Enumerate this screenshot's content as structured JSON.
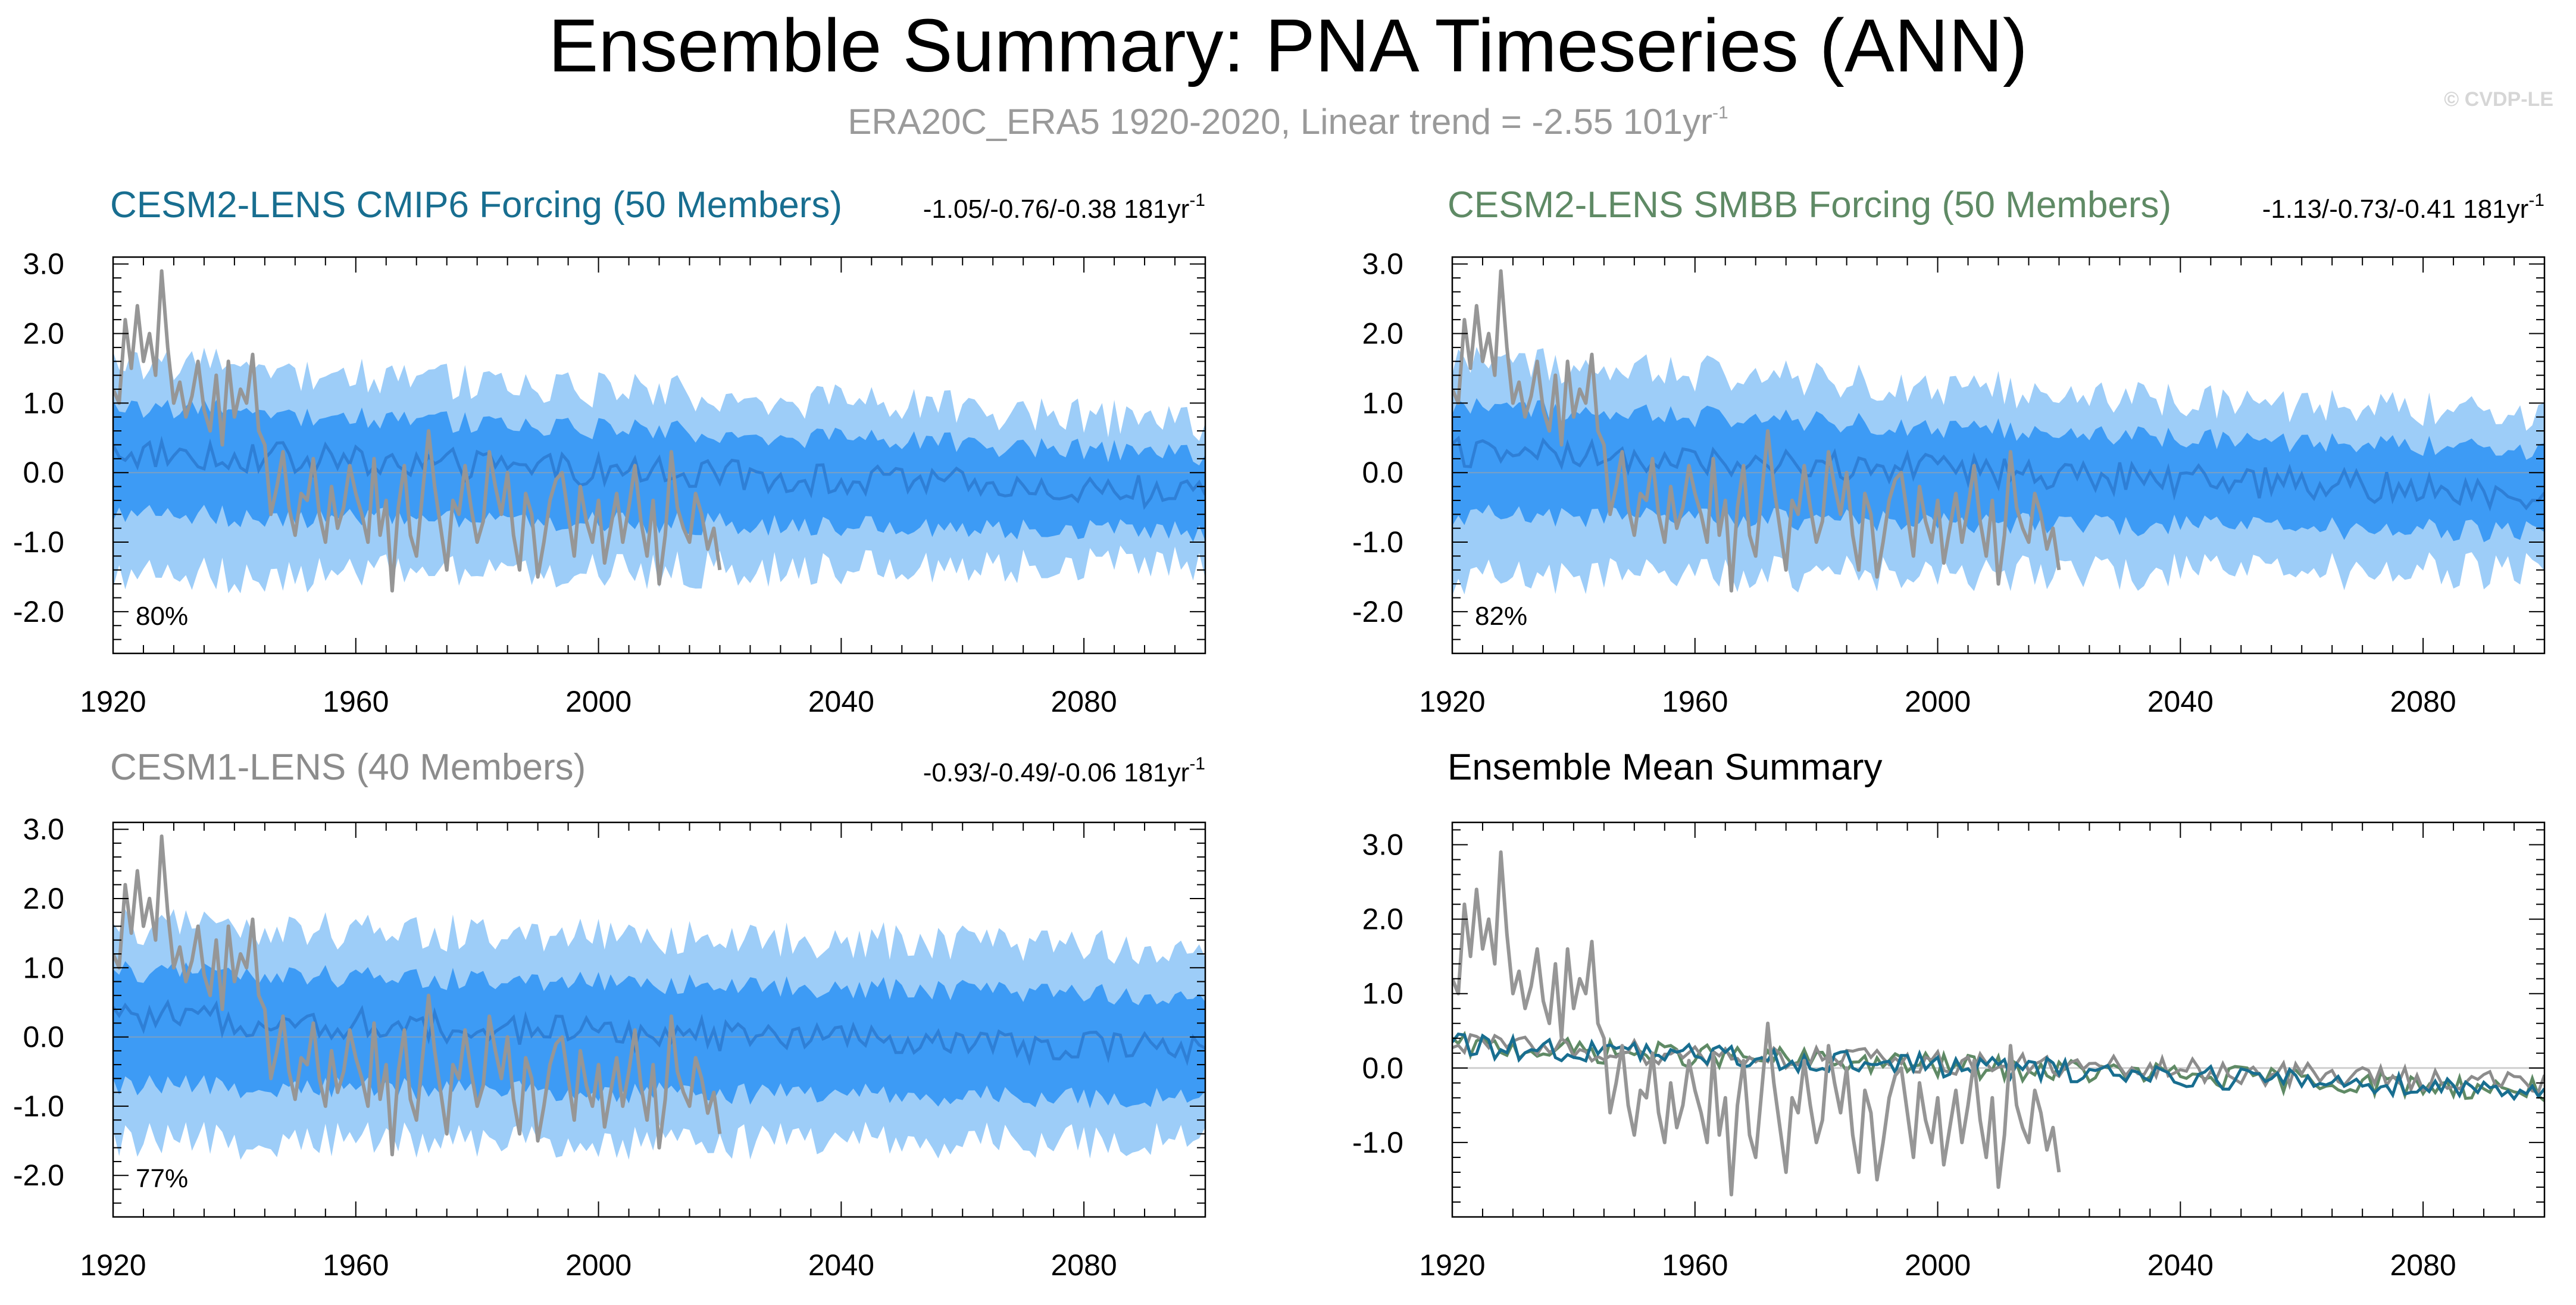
{
  "figure": {
    "title": "Ensemble Summary: PNA Timeseries (ANN)",
    "subtitle_main": "ERA20C_ERA5 1920-2020, Linear trend = -2.55 101yr",
    "subtitle_sup": "-1",
    "copyright": "© CVDP-LE"
  },
  "colors": {
    "band_outer": "#9dcdf8",
    "band_inner": "#3d9bf5",
    "ens_mean_line": "#2e7fd6",
    "obs": "#969696",
    "cesm2_cmip6": "#186e90",
    "cesm2_smbb": "#5f8a65",
    "cesm1": "#8c8c8c",
    "black": "#000000"
  },
  "panels": [
    {
      "id": "cesm2-cmip6",
      "title": "CESM2-LENS CMIP6 Forcing (50 Members)",
      "title_color": "#186e90",
      "trend_text": "-1.05/-0.76/-0.38 181yr",
      "trend_sup": "-1",
      "percent": "80%"
    },
    {
      "id": "cesm2-smbb",
      "title": "CESM2-LENS SMBB Forcing (50 Members)",
      "title_color": "#5f8a65",
      "trend_text": "-1.13/-0.73/-0.41 181yr",
      "trend_sup": "-1",
      "percent": "82%"
    },
    {
      "id": "cesm1",
      "title": "CESM1-LENS (40 Members)",
      "title_color": "#8c8c8c",
      "trend_text": "-0.93/-0.49/-0.06 181yr",
      "trend_sup": "-1",
      "percent": "77%"
    },
    {
      "id": "ens-mean",
      "title": "Ensemble Mean Summary",
      "title_color": "#000000",
      "trend_text": "",
      "trend_sup": "",
      "percent": ""
    }
  ],
  "chart_data": [
    {
      "type": "area",
      "panel": "cesm2-cmip6",
      "xlim": [
        1920,
        2100
      ],
      "ylim": [
        -2.6,
        3.1
      ],
      "x_ticks": [
        "1920",
        "1960",
        "2000",
        "2040",
        "2080"
      ],
      "y_ticks": [
        "3.0",
        "2.0",
        "1.0",
        "0.0",
        "-1.0",
        "-2.0"
      ],
      "shading": {
        "outer_start": [
          -1.5,
          1.6
        ],
        "outer_end": [
          -1.3,
          0.7
        ],
        "inner_start": [
          -0.6,
          0.95
        ],
        "inner_end": [
          -0.85,
          0.25
        ],
        "mean_start": 0.3,
        "mean_end": -0.3
      },
      "observations_x": [
        1920,
        2020
      ],
      "observations": [
        1.2,
        1.0,
        2.2,
        1.5,
        2.4,
        1.6,
        2.0,
        1.4,
        2.9,
        1.8,
        1.0,
        1.3,
        0.8,
        1.1,
        1.6,
        0.9,
        0.6,
        1.4,
        0.4,
        1.6,
        0.8,
        1.2,
        1.0,
        1.7,
        0.6,
        0.4,
        -0.6,
        -0.2,
        0.3,
        -0.5,
        -0.9,
        -0.3,
        -0.4,
        0.2,
        -0.6,
        -1.0,
        -0.2,
        -0.8,
        -0.5,
        0.1,
        -0.3,
        -0.6,
        -1.0,
        0.2,
        -0.9,
        -0.4,
        -1.7,
        -0.5,
        0.1,
        -0.9,
        -1.2,
        -0.3,
        0.6,
        -0.2,
        -0.8,
        -1.4,
        -0.4,
        -0.6,
        0.1,
        -0.5,
        -1.0,
        -0.7,
        0.3,
        -0.2,
        -0.6,
        0.0,
        -0.9,
        -1.4,
        -0.3,
        -0.6,
        -1.5,
        -1.0,
        -0.4,
        -0.1,
        0.0,
        -0.6,
        -1.2,
        -0.2,
        -0.7,
        -1.0,
        -0.4,
        -1.3,
        -0.8,
        -0.3,
        -1.0,
        -0.5,
        0.1,
        -0.7,
        -1.2,
        -0.4,
        -1.6,
        -0.9,
        0.3,
        -0.5,
        -0.8,
        -1.0,
        -0.3,
        -0.6,
        -1.1,
        -0.8,
        -1.4
      ]
    },
    {
      "type": "area",
      "panel": "cesm2-smbb",
      "xlim": [
        1920,
        2100
      ],
      "ylim": [
        -2.6,
        3.1
      ],
      "x_ticks": [
        "1920",
        "1960",
        "2000",
        "2040",
        "2080"
      ],
      "y_ticks": [
        "3.0",
        "2.0",
        "1.0",
        "0.0",
        "-1.0",
        "-2.0"
      ],
      "shading": {
        "outer_start": [
          -1.5,
          1.6
        ],
        "outer_end": [
          -1.4,
          0.8
        ],
        "inner_start": [
          -0.6,
          0.95
        ],
        "inner_end": [
          -0.85,
          0.3
        ],
        "mean_start": 0.3,
        "mean_end": -0.3
      },
      "observations_x": [
        1920,
        2020
      ],
      "observations": [
        1.2,
        1.0,
        2.2,
        1.5,
        2.4,
        1.6,
        2.0,
        1.4,
        2.9,
        1.8,
        1.0,
        1.3,
        0.8,
        1.1,
        1.6,
        0.9,
        0.6,
        1.4,
        0.4,
        1.6,
        0.8,
        1.2,
        1.0,
        1.7,
        0.6,
        0.4,
        -0.6,
        -0.2,
        0.3,
        -0.5,
        -0.9,
        -0.3,
        -0.4,
        0.2,
        -0.6,
        -1.0,
        -0.2,
        -0.8,
        -0.5,
        0.1,
        -0.3,
        -0.6,
        -1.0,
        0.2,
        -0.9,
        -0.4,
        -1.7,
        -0.5,
        0.1,
        -0.9,
        -1.2,
        -0.3,
        0.6,
        -0.2,
        -0.8,
        -1.4,
        -0.4,
        -0.6,
        0.1,
        -0.5,
        -1.0,
        -0.7,
        0.3,
        -0.2,
        -0.6,
        0.0,
        -0.9,
        -1.4,
        -0.3,
        -0.6,
        -1.5,
        -1.0,
        -0.4,
        -0.1,
        0.0,
        -0.6,
        -1.2,
        -0.2,
        -0.7,
        -1.0,
        -0.4,
        -1.3,
        -0.8,
        -0.3,
        -1.0,
        -0.5,
        0.1,
        -0.7,
        -1.2,
        -0.4,
        -1.6,
        -0.9,
        0.3,
        -0.5,
        -0.8,
        -1.0,
        -0.3,
        -0.6,
        -1.1,
        -0.8,
        -1.4
      ]
    },
    {
      "type": "area",
      "panel": "cesm1",
      "xlim": [
        1920,
        2100
      ],
      "ylim": [
        -2.6,
        3.1
      ],
      "x_ticks": [
        "1920",
        "1960",
        "2000",
        "2040",
        "2080"
      ],
      "y_ticks": [
        "3.0",
        "2.0",
        "1.0",
        "0.0",
        "-1.0",
        "-2.0"
      ],
      "shading": {
        "outer_start": [
          -1.5,
          1.6
        ],
        "outer_end": [
          -1.5,
          1.3
        ],
        "inner_start": [
          -0.7,
          0.95
        ],
        "inner_end": [
          -0.9,
          0.6
        ],
        "mean_start": 0.3,
        "mean_end": -0.2
      },
      "observations_x": [
        1920,
        2020
      ],
      "observations": [
        1.2,
        1.0,
        2.2,
        1.5,
        2.4,
        1.6,
        2.0,
        1.4,
        2.9,
        1.8,
        1.0,
        1.3,
        0.8,
        1.1,
        1.6,
        0.9,
        0.6,
        1.4,
        0.4,
        1.6,
        0.8,
        1.2,
        1.0,
        1.7,
        0.6,
        0.4,
        -0.6,
        -0.2,
        0.3,
        -0.5,
        -0.9,
        -0.3,
        -0.4,
        0.2,
        -0.6,
        -1.0,
        -0.2,
        -0.8,
        -0.5,
        0.1,
        -0.3,
        -0.6,
        -1.0,
        0.2,
        -0.9,
        -0.4,
        -1.7,
        -0.5,
        0.1,
        -0.9,
        -1.2,
        -0.3,
        0.6,
        -0.2,
        -0.8,
        -1.4,
        -0.4,
        -0.6,
        0.1,
        -0.5,
        -1.0,
        -0.7,
        0.3,
        -0.2,
        -0.6,
        0.0,
        -0.9,
        -1.4,
        -0.3,
        -0.6,
        -1.5,
        -1.0,
        -0.4,
        -0.1,
        0.0,
        -0.6,
        -1.2,
        -0.2,
        -0.7,
        -1.0,
        -0.4,
        -1.3,
        -0.8,
        -0.3,
        -1.0,
        -0.5,
        0.1,
        -0.7,
        -1.2,
        -0.4,
        -1.6,
        -0.9,
        0.3,
        -0.5,
        -0.8,
        -1.0,
        -0.3,
        -0.6,
        -1.1,
        -0.8,
        -1.4
      ]
    },
    {
      "type": "line",
      "panel": "ens-mean",
      "xlim": [
        1920,
        2100
      ],
      "ylim": [
        -2.0,
        3.3
      ],
      "x_ticks": [
        "1920",
        "1960",
        "2000",
        "2040",
        "2080"
      ],
      "y_ticks": [
        "3.0",
        "2.0",
        "1.0",
        "0.0",
        "-1.0"
      ],
      "series_start_end": {
        "cesm2_cmip6": [
          0.3,
          -0.3
        ],
        "cesm2_smbb": [
          0.3,
          -0.3
        ],
        "cesm1": [
          0.3,
          -0.2
        ]
      },
      "observations_x": [
        1920,
        2020
      ],
      "observations": [
        1.2,
        1.0,
        2.2,
        1.5,
        2.4,
        1.6,
        2.0,
        1.4,
        2.9,
        1.8,
        1.0,
        1.3,
        0.8,
        1.1,
        1.6,
        0.9,
        0.6,
        1.4,
        0.4,
        1.6,
        0.8,
        1.2,
        1.0,
        1.7,
        0.6,
        0.4,
        -0.6,
        -0.2,
        0.3,
        -0.5,
        -0.9,
        -0.3,
        -0.4,
        0.2,
        -0.6,
        -1.0,
        -0.2,
        -0.8,
        -0.5,
        0.1,
        -0.3,
        -0.6,
        -1.0,
        0.2,
        -0.9,
        -0.4,
        -1.7,
        -0.5,
        0.1,
        -0.9,
        -1.2,
        -0.3,
        0.6,
        -0.2,
        -0.8,
        -1.4,
        -0.4,
        -0.6,
        0.1,
        -0.5,
        -1.0,
        -0.7,
        0.3,
        -0.2,
        -0.6,
        0.0,
        -0.9,
        -1.4,
        -0.3,
        -0.6,
        -1.5,
        -1.0,
        -0.4,
        -0.1,
        0.0,
        -0.6,
        -1.2,
        -0.2,
        -0.7,
        -1.0,
        -0.4,
        -1.3,
        -0.8,
        -0.3,
        -1.0,
        -0.5,
        0.1,
        -0.7,
        -1.2,
        -0.4,
        -1.6,
        -0.9,
        0.3,
        -0.5,
        -0.8,
        -1.0,
        -0.3,
        -0.6,
        -1.1,
        -0.8,
        -1.4
      ]
    }
  ]
}
